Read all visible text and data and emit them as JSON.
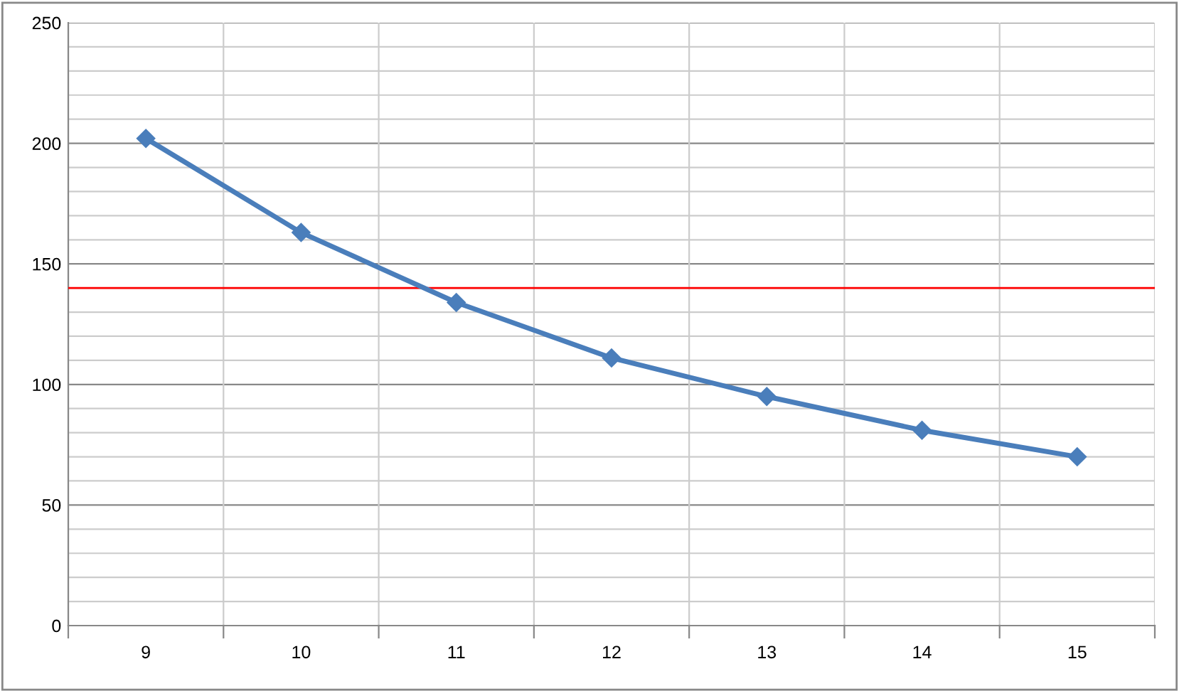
{
  "chart_data": {
    "type": "line",
    "categories": [
      "9",
      "10",
      "11",
      "12",
      "13",
      "14",
      "15"
    ],
    "series": [
      {
        "color": "#4a7ebb",
        "values": [
          202,
          163,
          134,
          111,
          95,
          81,
          70
        ]
      }
    ],
    "marker": "diamond",
    "line_style": "solid",
    "ylim": [
      0,
      250
    ],
    "yticks": [
      0,
      {
        "value": 10,
        "label": null
      },
      {
        "value": 20,
        "label": null
      },
      {
        "value": 30,
        "label": null
      },
      {
        "value": 40,
        "label": null
      },
      50,
      {
        "value": 60,
        "label": null
      },
      {
        "value": 70,
        "label": null
      },
      {
        "value": 80,
        "label": null
      },
      {
        "value": 90,
        "label": null
      },
      100,
      {
        "value": 110,
        "label": null
      },
      {
        "value": 120,
        "label": null
      },
      {
        "value": 130,
        "label": null
      },
      {
        "value": 140,
        "label": null
      },
      150,
      {
        "value": 160,
        "label": null
      },
      {
        "value": 170,
        "label": null
      },
      {
        "value": 180,
        "label": null
      },
      {
        "value": 190,
        "label": null
      },
      200,
      {
        "value": 210,
        "label": null
      },
      {
        "value": 220,
        "label": null
      },
      {
        "value": 230,
        "label": null
      },
      {
        "value": 240,
        "label": null
      },
      250
    ],
    "grid": true,
    "ref_lines": [
      {
        "axis": "y",
        "value": 140,
        "color": "#ff0000"
      }
    ]
  }
}
